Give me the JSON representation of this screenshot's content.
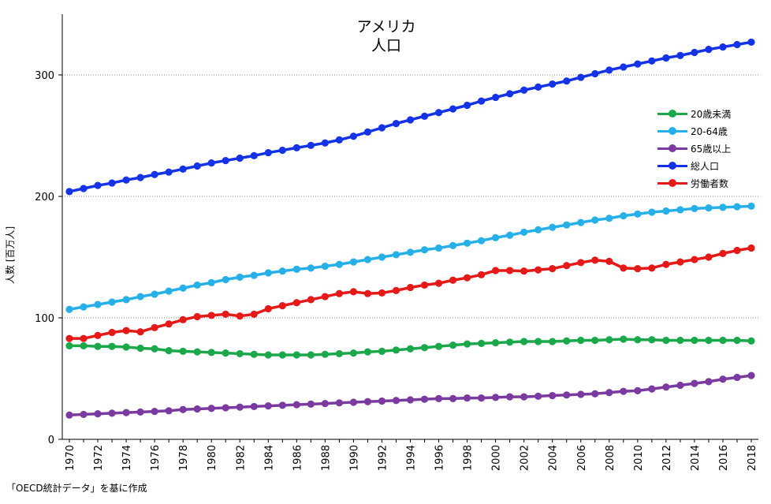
{
  "chart_data": {
    "type": "line",
    "title": "アメリカ",
    "subtitle": "人口",
    "ylabel": "人数 [百万人]",
    "xlabel": "",
    "source": "「OECD統計データ」を基に作成",
    "ylim": [
      0,
      350
    ],
    "yticks": [
      0,
      100,
      200,
      300
    ],
    "grid": "horizontal dotted",
    "legend_position": "right",
    "x": [
      1970,
      1971,
      1972,
      1973,
      1974,
      1975,
      1976,
      1977,
      1978,
      1979,
      1980,
      1981,
      1982,
      1983,
      1984,
      1985,
      1986,
      1987,
      1988,
      1989,
      1990,
      1991,
      1992,
      1993,
      1994,
      1995,
      1996,
      1997,
      1998,
      1999,
      2000,
      2001,
      2002,
      2003,
      2004,
      2005,
      2006,
      2007,
      2008,
      2009,
      2010,
      2011,
      2012,
      2013,
      2014,
      2015,
      2016,
      2017,
      2018
    ],
    "xtick_labels": [
      "1970",
      "1972",
      "1974",
      "1976",
      "1978",
      "1980",
      "1982",
      "1984",
      "1986",
      "1988",
      "1990",
      "1992",
      "1994",
      "1996",
      "1998",
      "2000",
      "2002",
      "2004",
      "2006",
      "2008",
      "2010",
      "2012",
      "2014",
      "2016",
      "2018"
    ],
    "series": [
      {
        "name": "20歳未満",
        "color": "#1aa84a",
        "values": [
          77,
          77,
          76.5,
          76.5,
          76,
          75,
          74.5,
          73,
          72.5,
          72,
          71.5,
          71,
          70.5,
          70,
          69.5,
          69.5,
          69.5,
          69.5,
          70,
          70.5,
          71,
          72,
          72.5,
          73.5,
          74.5,
          75.5,
          76.5,
          77.5,
          78.5,
          79,
          79.5,
          80,
          80.5,
          80.5,
          80.5,
          81,
          81.5,
          81.5,
          82,
          82.5,
          82,
          82,
          81.5,
          81.5,
          81.5,
          81.5,
          81.5,
          81.5,
          81
        ]
      },
      {
        "name": "20-64歳",
        "color": "#27b0e8",
        "values": [
          107,
          109,
          111,
          113,
          115,
          117.5,
          119.5,
          122,
          124.5,
          127,
          129,
          131.5,
          133.5,
          135,
          137,
          138.5,
          140,
          141,
          142.5,
          144,
          146,
          148,
          150,
          152,
          154,
          156,
          157.5,
          159.5,
          161.5,
          163.5,
          166,
          168,
          170.5,
          172.5,
          174.5,
          176.5,
          178.5,
          180.5,
          182,
          184,
          185.5,
          187,
          188,
          189,
          190,
          190.5,
          191,
          191.5,
          192
        ]
      },
      {
        "name": "65歳以上",
        "color": "#7a3aa0",
        "values": [
          20,
          20.5,
          21,
          21.5,
          22,
          22.5,
          23,
          23.5,
          24.5,
          25,
          25.5,
          26,
          26.5,
          27,
          27.5,
          28,
          28.5,
          29,
          29.5,
          30,
          30.5,
          31,
          31.5,
          32,
          32.5,
          33,
          33.5,
          33.5,
          34,
          34,
          34.5,
          35,
          35,
          35.5,
          36,
          36.5,
          37,
          37.5,
          38.5,
          39.5,
          40,
          41.5,
          43,
          44.5,
          46,
          47.5,
          49.5,
          51,
          52.5
        ]
      },
      {
        "name": "総人口",
        "color": "#1432e6",
        "values": [
          204,
          206.5,
          209,
          211,
          213.5,
          215.5,
          218,
          220,
          222.5,
          225,
          227.5,
          229.5,
          231.5,
          233.5,
          236,
          238,
          240,
          242,
          244,
          246.5,
          249.5,
          253,
          256.5,
          260,
          263,
          266,
          269,
          272,
          275,
          278.5,
          281.5,
          284.5,
          287.5,
          290,
          292.5,
          295,
          298,
          301,
          304,
          306.5,
          309,
          311.5,
          314,
          316,
          318.5,
          321,
          323,
          325,
          327
        ]
      },
      {
        "name": "労働者数",
        "color": "#e61919",
        "values": [
          83,
          83,
          85.5,
          88,
          89.5,
          88.5,
          92,
          95,
          98.5,
          101,
          102,
          103,
          101.5,
          103,
          107.5,
          110,
          112.5,
          115,
          117.5,
          120,
          121.5,
          120,
          120.5,
          122.5,
          125,
          127,
          128.5,
          131,
          133,
          135.5,
          139,
          139,
          138.5,
          139.5,
          140.5,
          143,
          145.5,
          147.5,
          146.5,
          141,
          140.5,
          141,
          144,
          146,
          148,
          150,
          153,
          155.5,
          157.5
        ]
      }
    ]
  }
}
